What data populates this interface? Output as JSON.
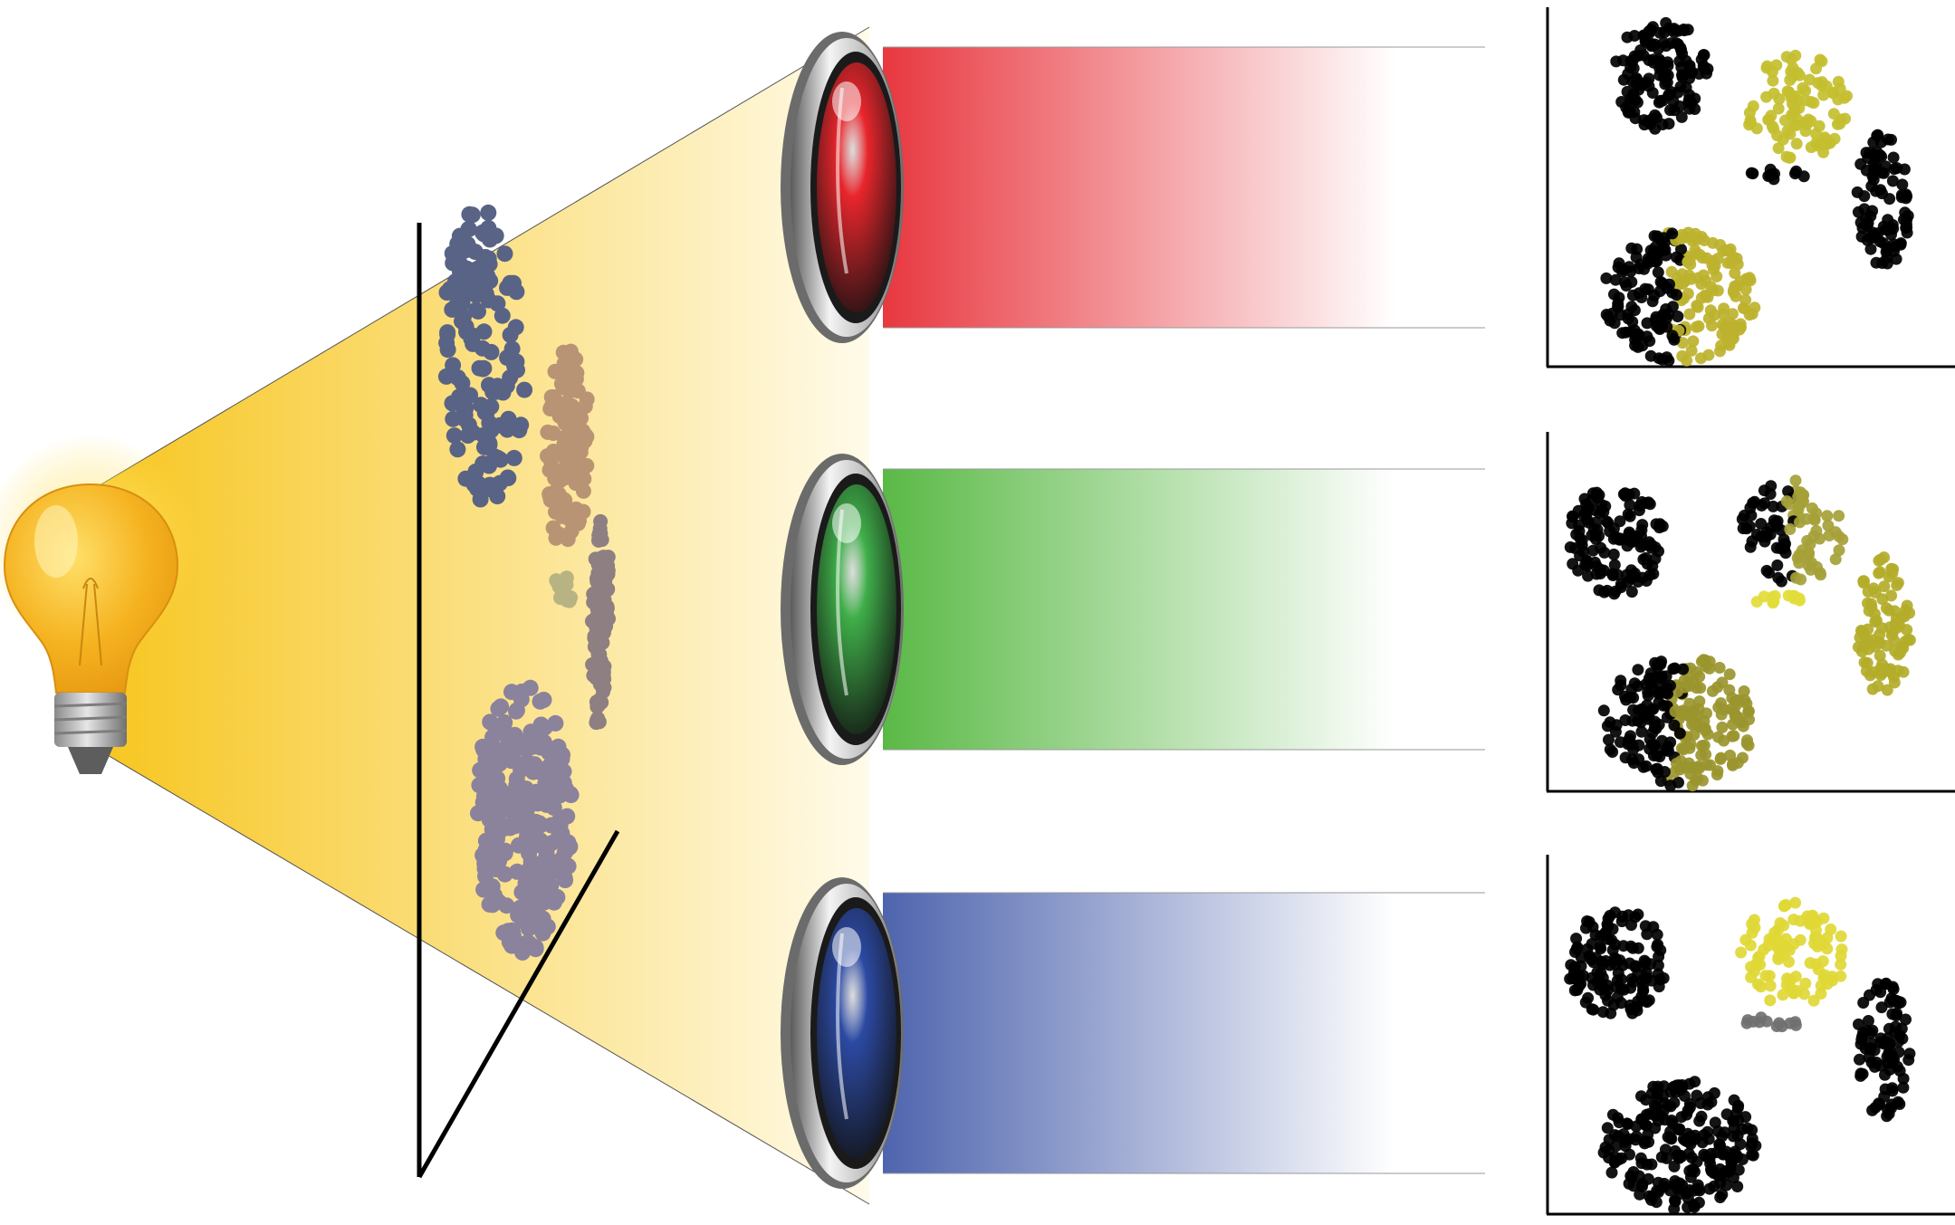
{
  "figure": {
    "background": "#ffffff",
    "icons": {
      "light_source": "light-bulb-icon",
      "lens": "lens-icon"
    },
    "light_cone": {
      "color_near": "#f7c51c",
      "color_far": "#fffbea"
    },
    "clusters": [
      {
        "id": "slate",
        "color": "#596385"
      },
      {
        "id": "tan",
        "color": "#b99474"
      },
      {
        "id": "khaki",
        "color": "#b8b383"
      },
      {
        "id": "mauve",
        "color": "#8e7f82"
      },
      {
        "id": "lavender",
        "color": "#8b829c"
      }
    ],
    "channels": [
      {
        "name": "red",
        "lens_color": "#e8262c",
        "beam_color": "#e8373f",
        "cluster_colors": {
          "slate": "#000000",
          "tan": "#c4bf30",
          "khaki": "#000000",
          "mauve": "#000000",
          "lavender": [
            "#000000",
            "#bdb22e"
          ]
        }
      },
      {
        "name": "green",
        "lens_color": "#3fae49",
        "beam_color": "#5ab946",
        "cluster_colors": {
          "slate": "#000000",
          "tan": [
            "#000000",
            "#a5a138"
          ],
          "khaki": "#e2dc3a",
          "mauve": "#b3ad2a",
          "lavender": [
            "#000000",
            "#9a952e"
          ]
        }
      },
      {
        "name": "blue",
        "lens_color": "#2c4aa3",
        "beam_color": "#4e64ae",
        "cluster_colors": {
          "slate": "#000000",
          "tan": "#e0d835",
          "khaki": "#707070",
          "mauve": "#000000",
          "lavender": "#000000"
        }
      }
    ]
  }
}
